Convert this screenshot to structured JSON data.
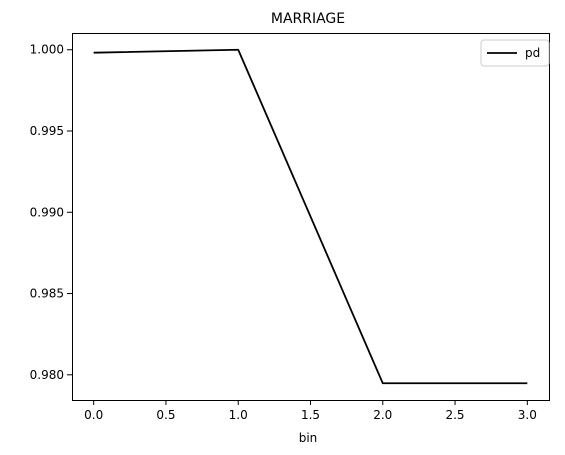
{
  "chart_data": {
    "type": "line",
    "title": "MARRIAGE",
    "xlabel": "bin",
    "ylabel": "",
    "x": [
      0.0,
      1.0,
      2.0,
      3.0
    ],
    "series": [
      {
        "name": "pd",
        "color": "#000000",
        "values": [
          0.99982,
          1.0,
          0.97948,
          0.97948
        ]
      }
    ],
    "xlim": [
      -0.15,
      3.15
    ],
    "ylim": [
      0.97845,
      1.00103
    ],
    "xticks": [
      0.0,
      0.5,
      1.0,
      1.5,
      2.0,
      2.5,
      3.0
    ],
    "xtick_labels": [
      "0.0",
      "0.5",
      "1.0",
      "1.5",
      "2.0",
      "2.5",
      "3.0"
    ],
    "yticks": [
      0.98,
      0.985,
      0.99,
      0.995,
      1.0
    ],
    "ytick_labels": [
      "0.980",
      "0.985",
      "0.990",
      "0.995",
      "1.000"
    ],
    "grid": false,
    "legend_position": "top-right"
  }
}
